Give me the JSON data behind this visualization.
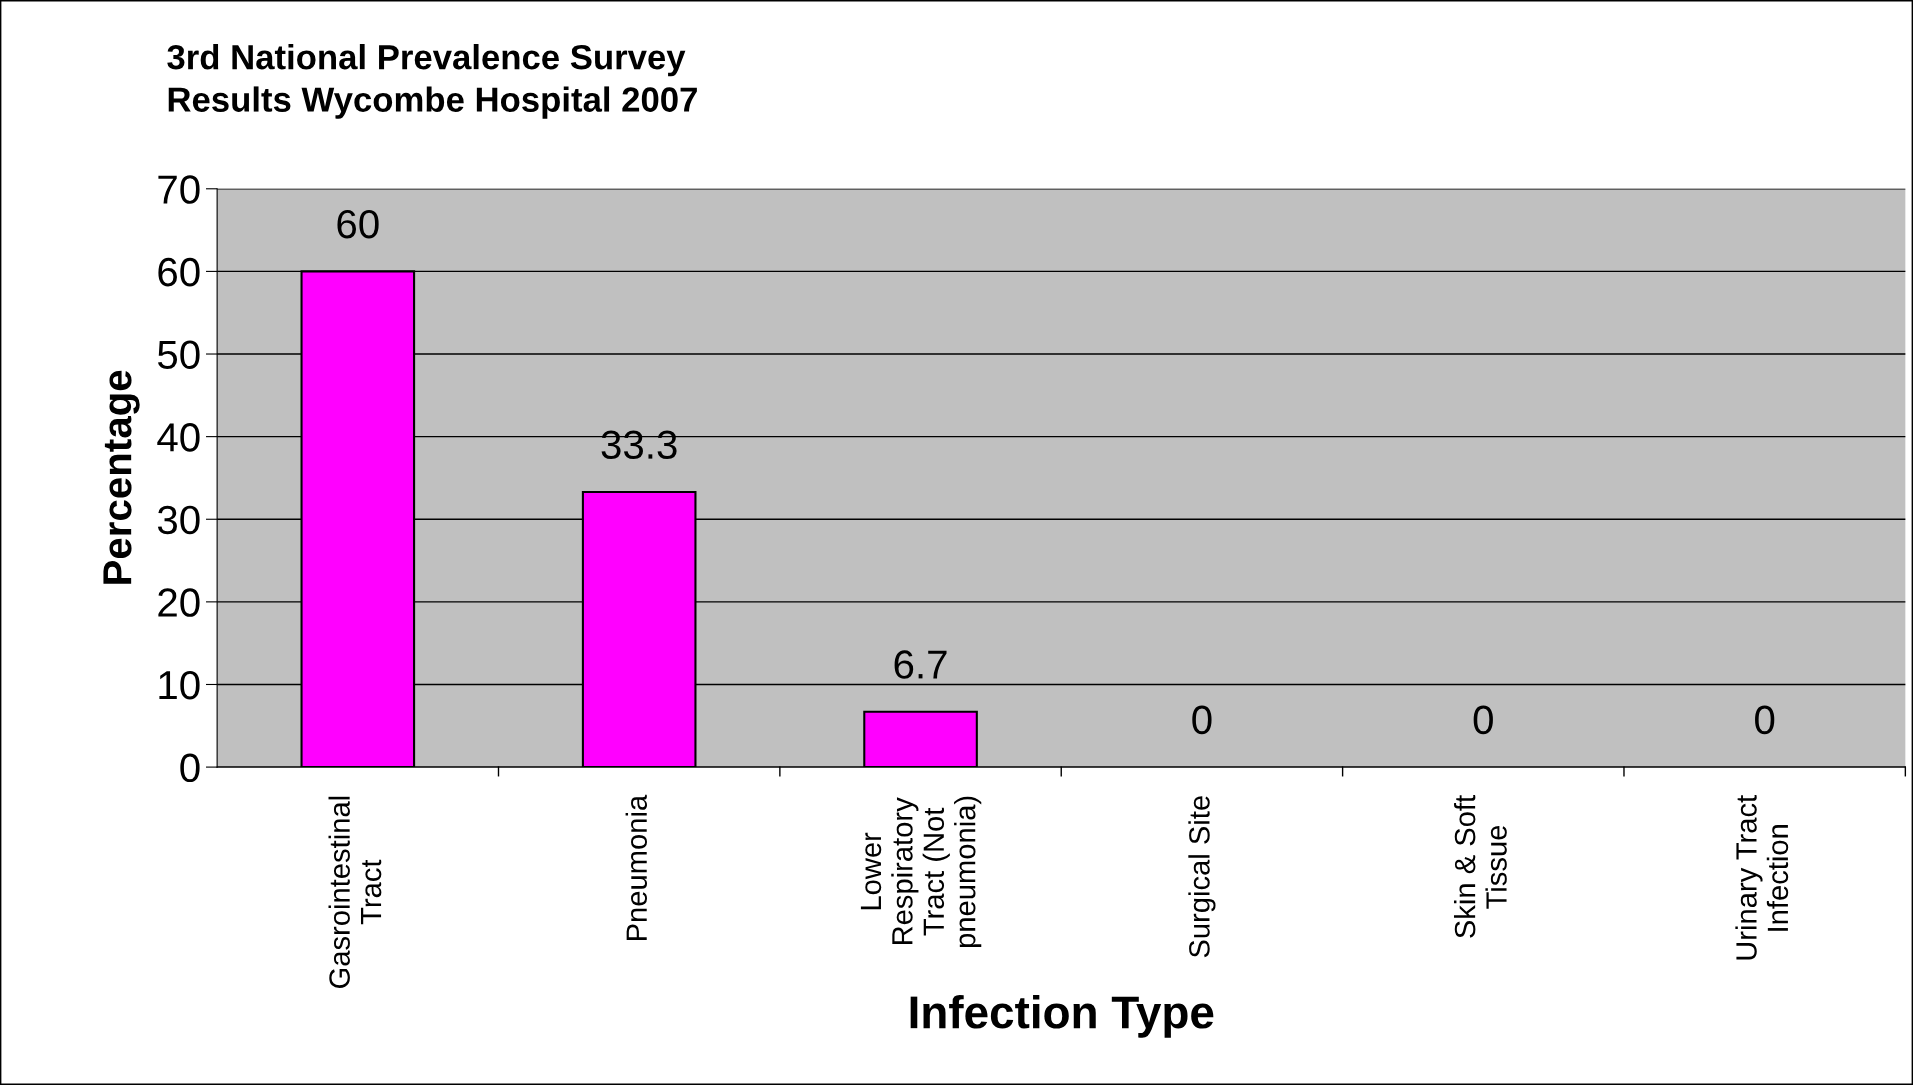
{
  "chart_data": {
    "type": "bar",
    "title": "3rd National Prevalence Survey\nResults Wycombe Hospital 2007",
    "xlabel": "Infection Type",
    "ylabel": "Percentage",
    "categories": [
      "Gasrointestinal\nTract",
      "Pneumonia",
      "Lower\nRespiratory\nTract (Not\npneumonia)",
      "Surgical Site",
      "Skin & Soft\nTissue",
      "Urinary Tract\nInfection"
    ],
    "values": [
      60,
      33.3,
      6.7,
      0,
      0,
      0
    ],
    "color": "#ff00ff",
    "ylim": [
      0,
      70
    ],
    "yticks": [
      0,
      10,
      20,
      30,
      40,
      50,
      60,
      70
    ],
    "grid": "y",
    "data_labels": true
  }
}
